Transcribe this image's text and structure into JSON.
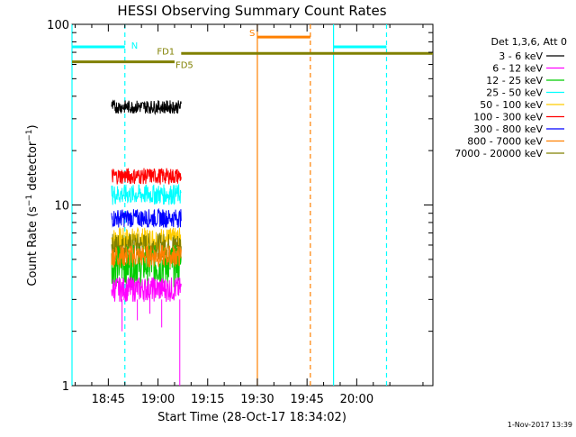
{
  "chart_data": {
    "type": "line",
    "title": "HESSI Observing Summary Count Rates",
    "xlabel": "Start Time (28-Oct-17 18:34:02)",
    "ylabel": "Count Rate (s⁻¹ detector⁻¹)",
    "ylabel_parts": {
      "main": "Count Rate (s",
      "sup1": "−1",
      "mid": " detector",
      "sup2": "−1",
      "end": ")"
    },
    "y_scale": "log",
    "ylim": [
      1,
      100
    ],
    "xlim": [
      "18:34:02",
      "20:23:00"
    ],
    "x_ticks": [
      "18:45",
      "19:00",
      "19:15",
      "19:30",
      "19:45",
      "20:00"
    ],
    "y_ticks": [
      "1",
      "10",
      "100"
    ],
    "legend_title": "Det 1,3,6, Att 0",
    "legend_position": "right",
    "series": [
      {
        "name": "3 - 6 keV",
        "color": "#000000",
        "x_range": [
          "18:46",
          "19:07"
        ],
        "approx_value": 35,
        "noise": [
          32,
          38
        ]
      },
      {
        "name": "6 - 12 keV",
        "color": "#ff00ff",
        "x_range": [
          "18:46",
          "19:07"
        ],
        "approx_value": 3.5,
        "noise": [
          2.9,
          4
        ]
      },
      {
        "name": "12 - 25 keV",
        "color": "#00cc00",
        "x_range": [
          "18:46",
          "19:07"
        ],
        "approx_value": 4.5,
        "noise": [
          3.5,
          6
        ]
      },
      {
        "name": "25 - 50 keV",
        "color": "#00ffff",
        "x_range": [
          "18:46",
          "19:07"
        ],
        "approx_value": 11.5,
        "noise": [
          10,
          13
        ]
      },
      {
        "name": "50 - 100 keV",
        "color": "#ffcc00",
        "x_range": [
          "18:46",
          "19:07"
        ],
        "approx_value": 6.5,
        "noise": [
          5.5,
          7.5
        ]
      },
      {
        "name": "100 - 300 keV",
        "color": "#ff0000",
        "x_range": [
          "18:46",
          "19:07"
        ],
        "approx_value": 14.5,
        "noise": [
          13,
          16
        ]
      },
      {
        "name": "300 - 800 keV",
        "color": "#0000ff",
        "x_range": [
          "18:46",
          "19:07"
        ],
        "approx_value": 8.5,
        "noise": [
          7.5,
          9.5
        ]
      },
      {
        "name": "800 - 7000 keV",
        "color": "#ff8000",
        "x_range": [
          "18:46",
          "19:07"
        ],
        "approx_value": 5.2,
        "noise": [
          4.5,
          6
        ]
      },
      {
        "name": "7000 - 20000 keV",
        "color": "#808000",
        "x_range": [
          "18:46",
          "19:07"
        ],
        "approx_value": 6.0,
        "noise": [
          5,
          7
        ]
      }
    ],
    "annotations": [
      {
        "label": "N",
        "color": "#00ffff",
        "segments": [
          [
            "18:34:02",
            "18:50"
          ],
          [
            "19:53",
            "20:09"
          ]
        ],
        "level": 75
      },
      {
        "label": "S",
        "color": "#ff8000",
        "segments": [
          [
            "19:30",
            "19:46"
          ]
        ],
        "level": 85
      },
      {
        "label": "FD1",
        "color": "#808000",
        "segments": [
          [
            "19:07",
            "20:23:00"
          ]
        ],
        "level": 69
      },
      {
        "label": "FD5",
        "color": "#808000",
        "segments": [
          [
            "18:34:02",
            "19:05"
          ]
        ],
        "level": 62
      }
    ],
    "vertical_lines": [
      {
        "x": "18:34:02",
        "color": "#00ffff",
        "style": "solid"
      },
      {
        "x": "18:50",
        "color": "#00ffff",
        "style": "dashed"
      },
      {
        "x": "19:30",
        "color": "#ff8000",
        "style": "solid"
      },
      {
        "x": "19:46",
        "color": "#ff8000",
        "style": "dashed"
      },
      {
        "x": "19:53",
        "color": "#00ffff",
        "style": "solid"
      },
      {
        "x": "20:09",
        "color": "#00ffff",
        "style": "dashed"
      }
    ],
    "footer": "1-Nov-2017 13:39",
    "grid": false
  }
}
